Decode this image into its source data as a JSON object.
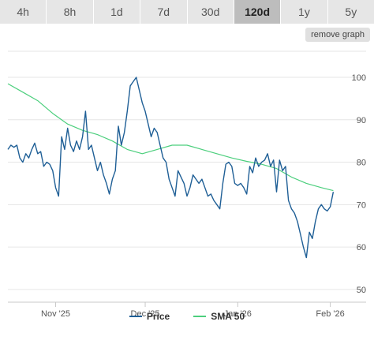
{
  "tabs": [
    {
      "label": "4h",
      "active": false
    },
    {
      "label": "8h",
      "active": false
    },
    {
      "label": "1d",
      "active": false
    },
    {
      "label": "7d",
      "active": false
    },
    {
      "label": "30d",
      "active": false
    },
    {
      "label": "120d",
      "active": true
    },
    {
      "label": "1y",
      "active": false
    },
    {
      "label": "5y",
      "active": false
    }
  ],
  "remove_graph_label": "remove graph",
  "legend": {
    "price_label": "Price",
    "sma_label": "SMA 50"
  },
  "colors": {
    "price": "#1f5f96",
    "sma": "#4ccf7d",
    "grid": "#e6e6e6",
    "axis_text": "#555555"
  },
  "chart_data": {
    "type": "line",
    "x_tick_labels": [
      "Nov '25",
      "Dec '25",
      "Jan '26",
      "Feb '26"
    ],
    "x_ticks_day": [
      16,
      46,
      77,
      108
    ],
    "x_range_day": [
      0,
      120
    ],
    "y_ticks": [
      50,
      60,
      70,
      80,
      90,
      100
    ],
    "y_range": [
      47,
      108
    ],
    "series": [
      {
        "name": "Price",
        "points": [
          [
            0,
            83
          ],
          [
            1,
            84
          ],
          [
            2,
            83.5
          ],
          [
            3,
            84
          ],
          [
            4,
            81
          ],
          [
            5,
            80
          ],
          [
            6,
            82
          ],
          [
            7,
            81
          ],
          [
            8,
            83
          ],
          [
            9,
            84.5
          ],
          [
            10,
            82
          ],
          [
            11,
            82.5
          ],
          [
            12,
            79
          ],
          [
            13,
            80
          ],
          [
            14,
            79.5
          ],
          [
            15,
            78
          ],
          [
            16,
            74
          ],
          [
            17,
            72
          ],
          [
            18,
            86
          ],
          [
            19,
            83
          ],
          [
            20,
            88
          ],
          [
            21,
            84
          ],
          [
            22,
            82.5
          ],
          [
            23,
            85
          ],
          [
            24,
            83
          ],
          [
            25,
            86
          ],
          [
            26,
            92
          ],
          [
            27,
            83
          ],
          [
            28,
            84
          ],
          [
            29,
            81
          ],
          [
            30,
            78
          ],
          [
            31,
            80
          ],
          [
            32,
            77
          ],
          [
            33,
            75
          ],
          [
            34,
            72.5
          ],
          [
            35,
            76
          ],
          [
            36,
            78
          ],
          [
            37,
            88.5
          ],
          [
            38,
            84
          ],
          [
            39,
            87
          ],
          [
            40,
            92
          ],
          [
            41,
            98
          ],
          [
            42,
            99
          ],
          [
            43,
            100
          ],
          [
            44,
            97
          ],
          [
            45,
            94
          ],
          [
            46,
            92
          ],
          [
            47,
            89
          ],
          [
            48,
            86
          ],
          [
            49,
            88
          ],
          [
            50,
            87
          ],
          [
            51,
            84
          ],
          [
            52,
            81
          ],
          [
            53,
            80
          ],
          [
            54,
            76
          ],
          [
            55,
            74
          ],
          [
            56,
            72
          ],
          [
            57,
            78
          ],
          [
            58,
            76.5
          ],
          [
            59,
            75
          ],
          [
            60,
            72
          ],
          [
            61,
            74
          ],
          [
            62,
            77
          ],
          [
            63,
            76
          ],
          [
            64,
            75
          ],
          [
            65,
            76
          ],
          [
            66,
            74
          ],
          [
            67,
            72
          ],
          [
            68,
            72.5
          ],
          [
            69,
            71
          ],
          [
            70,
            70
          ],
          [
            71,
            69
          ],
          [
            72,
            75
          ],
          [
            73,
            79.5
          ],
          [
            74,
            80
          ],
          [
            75,
            79
          ],
          [
            76,
            75
          ],
          [
            77,
            74.5
          ],
          [
            78,
            75
          ],
          [
            79,
            74
          ],
          [
            80,
            72.5
          ],
          [
            81,
            79
          ],
          [
            82,
            77.5
          ],
          [
            83,
            81
          ],
          [
            84,
            79
          ],
          [
            85,
            80
          ],
          [
            86,
            80.5
          ],
          [
            87,
            82
          ],
          [
            88,
            79
          ],
          [
            89,
            80.5
          ],
          [
            90,
            73
          ],
          [
            91,
            80.5
          ],
          [
            92,
            78
          ],
          [
            93,
            79
          ],
          [
            94,
            71
          ],
          [
            95,
            69
          ],
          [
            96,
            68
          ],
          [
            97,
            66
          ],
          [
            98,
            63
          ],
          [
            99,
            60
          ],
          [
            100,
            57.5
          ],
          [
            101,
            63.5
          ],
          [
            102,
            62
          ],
          [
            103,
            66
          ],
          [
            104,
            69
          ],
          [
            105,
            70
          ],
          [
            106,
            69
          ],
          [
            107,
            68.5
          ],
          [
            108,
            69.5
          ],
          [
            109,
            73
          ]
        ]
      },
      {
        "name": "SMA 50",
        "points": [
          [
            0,
            98.5
          ],
          [
            5,
            96.5
          ],
          [
            10,
            94.5
          ],
          [
            15,
            91.5
          ],
          [
            20,
            89
          ],
          [
            25,
            87.5
          ],
          [
            30,
            86.5
          ],
          [
            35,
            85
          ],
          [
            40,
            83
          ],
          [
            45,
            82
          ],
          [
            50,
            83
          ],
          [
            55,
            84
          ],
          [
            60,
            84
          ],
          [
            65,
            83
          ],
          [
            70,
            82
          ],
          [
            75,
            81
          ],
          [
            80,
            80.2
          ],
          [
            85,
            79.5
          ],
          [
            90,
            78.5
          ],
          [
            95,
            76.5
          ],
          [
            100,
            75
          ],
          [
            105,
            74
          ],
          [
            109,
            73.3
          ]
        ]
      }
    ],
    "grid": true,
    "legend_position": "bottom"
  }
}
